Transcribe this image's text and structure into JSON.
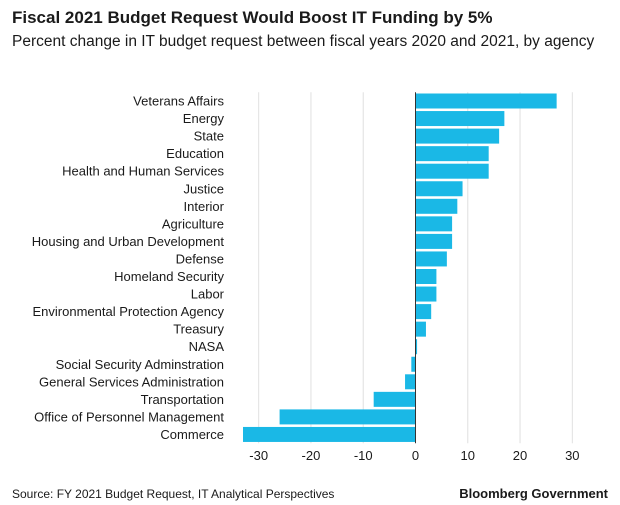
{
  "header": {
    "title": "Fiscal 2021 Budget Request Would Boost IT Funding by 5%",
    "subtitle": "Percent change in IT budget request between fiscal years 2020 and 2021, by agency"
  },
  "footer": {
    "source": "Source: FY 2021 Budget Request, IT Analytical Perspectives",
    "brand": "Bloomberg Government"
  },
  "colors": {
    "bar": "#1ab8e6",
    "zero_line": "#333333",
    "grid": "#e0e0e0"
  },
  "chart_data": {
    "type": "bar",
    "orientation": "horizontal",
    "title": "Fiscal 2021 Budget Request Would Boost IT Funding by 5%",
    "subtitle": "Percent change in IT budget request between fiscal years 2020 and 2021, by agency",
    "categories": [
      "Veterans Affairs",
      "Energy",
      "State",
      "Education",
      "Health and Human Services",
      "Justice",
      "Interior",
      "Agriculture",
      "Housing and Urban Development",
      "Defense",
      "Homeland Security",
      "Labor",
      "Environmental Protection Agency",
      "Treasury",
      "NASA",
      "Social Security Adminstration",
      "General Services Administration",
      "Transportation",
      "Office of Personnel Management",
      "Commerce"
    ],
    "values": [
      27,
      17,
      16,
      14,
      14,
      9,
      8,
      7,
      7,
      6,
      4,
      4,
      3,
      2,
      0.3,
      -0.8,
      -2,
      -8,
      -26,
      -33
    ],
    "xlim": [
      -33,
      33
    ],
    "xticks": [
      -30,
      -20,
      -10,
      0,
      10,
      20,
      30
    ],
    "xtick_labels": [
      "-30",
      "-20",
      "-10",
      "0",
      "10",
      "20",
      "30"
    ],
    "grid": true,
    "legend": "none"
  }
}
